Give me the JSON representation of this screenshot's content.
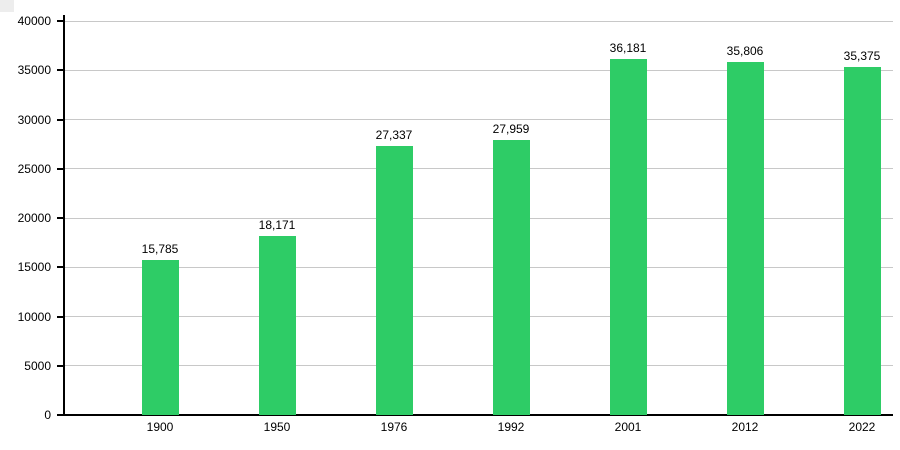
{
  "page": {
    "background_color": "#ffffff"
  },
  "artifacts": {
    "corner_square_color": "#ededed"
  },
  "chart_data": {
    "type": "bar",
    "title": "",
    "xlabel": "",
    "ylabel": "",
    "categories": [
      "1900",
      "1950",
      "1976",
      "1992",
      "2001",
      "2012",
      "2022"
    ],
    "values": [
      15785,
      18171,
      27337,
      27959,
      36181,
      35806,
      35375
    ],
    "value_labels": [
      "15,785",
      "18,171",
      "27,337",
      "27,959",
      "36,181",
      "35,806",
      "35,375"
    ],
    "ylim": [
      0,
      40000
    ],
    "yticks": [
      0,
      5000,
      10000,
      15000,
      20000,
      25000,
      30000,
      35000,
      40000
    ],
    "ytick_labels": [
      "0",
      "5000",
      "10000",
      "15000",
      "20000",
      "25000",
      "30000",
      "35000",
      "40000"
    ],
    "grid": true,
    "legend": false,
    "colors": {
      "bar": "#2ecc66",
      "axis": "#000000",
      "gridline": "#c8c8c8",
      "text": "#000000",
      "background": "#ffffff"
    }
  }
}
